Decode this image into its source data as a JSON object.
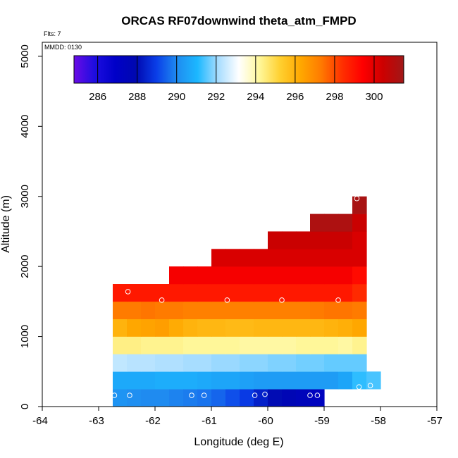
{
  "chart_data": {
    "type": "heatmap",
    "title": "ORCAS RF07downwind theta_atm_FMPD",
    "xlabel": "Longitude (deg E)",
    "ylabel": "Altitude (m)",
    "xlim": [
      -64,
      -57
    ],
    "ylim": [
      0,
      5200
    ],
    "x_ticks": [
      -64,
      -63,
      -62,
      -61,
      -60,
      -59,
      -58,
      -57
    ],
    "y_ticks": [
      0,
      1000,
      2000,
      3000,
      4000,
      5000
    ],
    "annotations": {
      "flights": "Flts: 7",
      "date": "MMDD: 0130"
    },
    "colorbar": {
      "min": 284.8,
      "max": 301.5,
      "ticks": [
        286,
        288,
        290,
        292,
        294,
        296,
        298,
        300
      ],
      "stops": [
        "#6a0ce6",
        "#1d0de0",
        "#0000c8",
        "#0008b0",
        "#0a3ee8",
        "#1f8cf0",
        "#1cb8ff",
        "#a8ddff",
        "#ffffff",
        "#fff79a",
        "#ffd030",
        "#ffa800",
        "#ff7a00",
        "#ff3000",
        "#ff0000",
        "#cc0000",
        "#a01818"
      ]
    },
    "cells": [
      {
        "x0": -62.75,
        "x1": -59.0,
        "y0": 0,
        "y1": 250,
        "values": [
          290.2,
          290.1,
          290.0,
          290.0,
          289.9,
          289.8,
          289.7,
          289.5,
          289.2,
          288.9,
          288.4,
          288.0,
          287.7,
          287.5,
          287.3
        ]
      },
      {
        "x0": -62.75,
        "x1": -58.0,
        "y0": 250,
        "y1": 500,
        "values": [
          290.7,
          290.7,
          290.7,
          290.8,
          290.8,
          290.8,
          290.7,
          290.6,
          290.6,
          290.5,
          290.4,
          290.4,
          290.4,
          290.4,
          290.4,
          290.4,
          290.6,
          291.2,
          291.4
        ]
      },
      {
        "x0": -62.75,
        "x1": -58.25,
        "y0": 500,
        "y1": 750,
        "values": [
          292.4,
          292.3,
          292.3,
          292.2,
          292.2,
          292.1,
          292.1,
          292.0,
          292.0,
          291.9,
          291.9,
          291.8,
          291.8,
          291.7,
          291.7,
          291.6,
          291.6,
          291.6
        ]
      },
      {
        "x0": -62.75,
        "x1": -58.25,
        "y0": 750,
        "y1": 1000,
        "values": [
          294.4,
          294.4,
          294.3,
          294.3,
          294.3,
          294.2,
          294.2,
          294.2,
          294.2,
          294.1,
          294.1,
          294.1,
          294.1,
          294.2,
          294.2,
          294.2,
          294.1,
          294.3
        ]
      },
      {
        "x0": -62.75,
        "x1": -58.25,
        "y0": 1000,
        "y1": 1250,
        "values": [
          296.0,
          296.3,
          296.4,
          296.5,
          296.2,
          296.0,
          295.9,
          295.9,
          295.8,
          295.8,
          295.9,
          295.9,
          295.9,
          295.9,
          295.9,
          296.0,
          296.1,
          296.3
        ]
      },
      {
        "x0": -62.75,
        "x1": -58.25,
        "y0": 1250,
        "y1": 1500,
        "values": [
          297.3,
          297.3,
          297.4,
          297.3,
          297.3,
          297.2,
          297.2,
          297.2,
          297.2,
          297.2,
          297.2,
          297.2,
          297.2,
          297.2,
          297.3,
          297.4,
          297.4,
          297.3
        ]
      },
      {
        "x0": -62.75,
        "x1": -58.25,
        "y0": 1500,
        "y1": 1750,
        "values": [
          298.9,
          298.9,
          298.9,
          298.9,
          298.9,
          298.9,
          298.9,
          298.9,
          298.9,
          298.9,
          298.9,
          298.9,
          298.9,
          298.9,
          298.9,
          298.9,
          298.9,
          298.5
        ]
      },
      {
        "x0": -61.75,
        "x1": -58.25,
        "y0": 1750,
        "y1": 2000,
        "values": [
          299.6,
          299.6,
          299.6,
          299.6,
          299.6,
          299.6,
          299.6,
          299.6,
          299.6,
          299.6,
          299.6,
          299.6,
          299.6,
          299.2
        ]
      },
      {
        "x0": -61.0,
        "x1": -58.25,
        "y0": 2000,
        "y1": 2250,
        "values": [
          300.2,
          300.2,
          300.2,
          300.2,
          300.2,
          300.2,
          300.2,
          300.2,
          300.2,
          300.2,
          300.2
        ]
      },
      {
        "x0": -60.0,
        "x1": -58.25,
        "y0": 2250,
        "y1": 2500,
        "values": [
          300.5,
          300.5,
          300.5,
          300.5,
          300.5,
          300.5,
          300.2
        ]
      },
      {
        "x0": -59.25,
        "x1": -58.25,
        "y0": 2500,
        "y1": 2750,
        "values": [
          301.2,
          301.2,
          301.2,
          300.5
        ]
      },
      {
        "x0": -58.5,
        "x1": -58.25,
        "y0": 2750,
        "y1": 3000,
        "values": [
          301.3
        ]
      }
    ],
    "points": [
      {
        "lon": -62.72,
        "alt": 160
      },
      {
        "lon": -62.45,
        "alt": 160
      },
      {
        "lon": -61.35,
        "alt": 160
      },
      {
        "lon": -61.13,
        "alt": 160
      },
      {
        "lon": -60.23,
        "alt": 160
      },
      {
        "lon": -60.05,
        "alt": 175
      },
      {
        "lon": -59.25,
        "alt": 160
      },
      {
        "lon": -59.12,
        "alt": 160
      },
      {
        "lon": -58.38,
        "alt": 280
      },
      {
        "lon": -58.18,
        "alt": 300
      },
      {
        "lon": -62.48,
        "alt": 1640
      },
      {
        "lon": -61.88,
        "alt": 1520
      },
      {
        "lon": -60.72,
        "alt": 1520
      },
      {
        "lon": -59.75,
        "alt": 1520
      },
      {
        "lon": -58.75,
        "alt": 1520
      },
      {
        "lon": -58.42,
        "alt": 2970
      }
    ]
  }
}
